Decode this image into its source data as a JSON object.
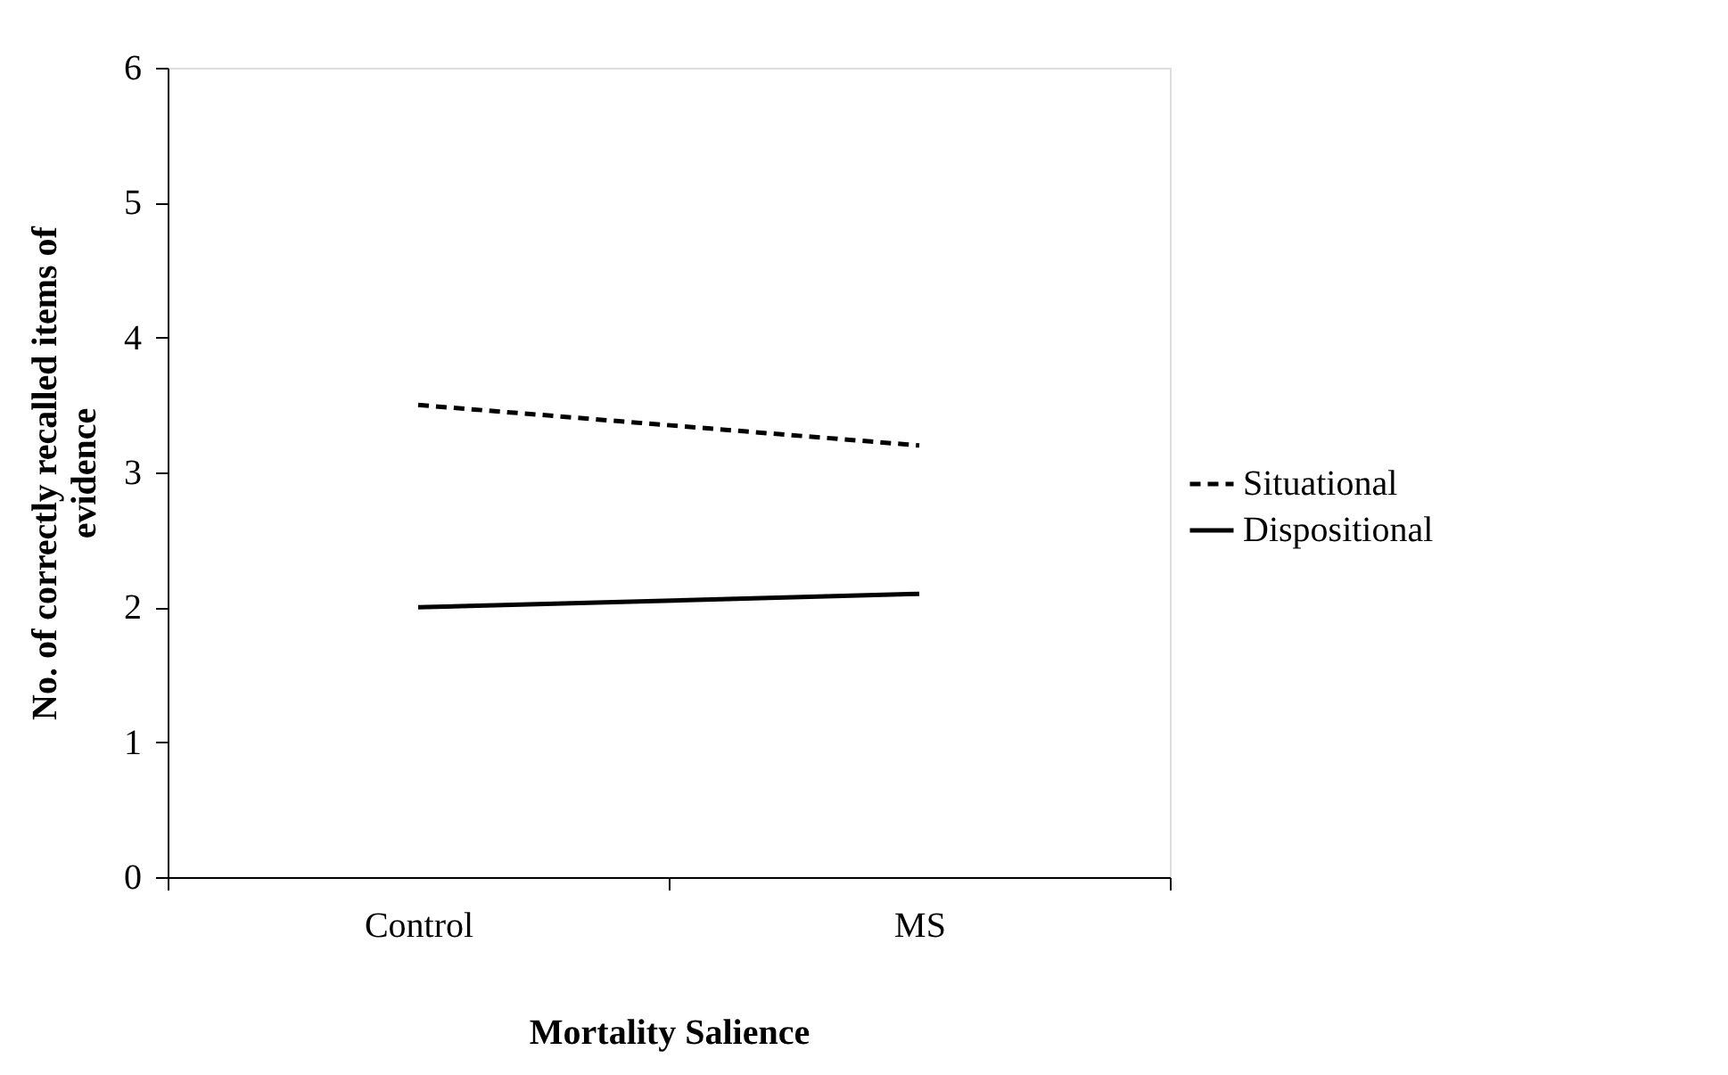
{
  "chart_data": {
    "type": "line",
    "xlabel": "Mortality Salience",
    "ylabel": "No. of correctly recalled items of evidence",
    "categories": [
      "Control",
      "MS"
    ],
    "series": [
      {
        "name": "Situational",
        "color": "#000000",
        "line_style": "dashed",
        "values": [
          3.5,
          3.2
        ]
      },
      {
        "name": "Dispositional",
        "color": "#000000",
        "line_style": "solid",
        "values": [
          2.0,
          2.1
        ]
      }
    ],
    "ylim": [
      0,
      6
    ],
    "yticks": [
      0,
      1,
      2,
      3,
      4,
      5,
      6
    ],
    "grid": false,
    "legend": "right",
    "marker": "none"
  }
}
